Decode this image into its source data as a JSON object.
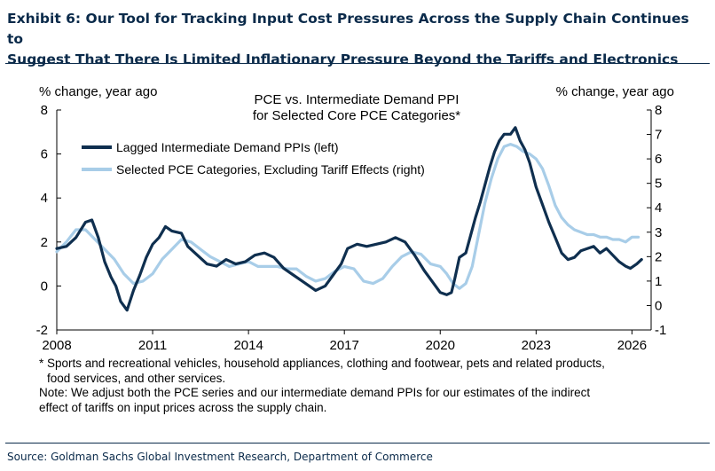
{
  "exhibit": {
    "title_line1": "Exhibit 6: Our Tool for Tracking Input Cost Pressures Across the Supply Chain Continues to",
    "title_line2": "Suggest That There Is Limited Inflationary Pressure Beyond the Tariffs and Electronics"
  },
  "colors": {
    "title": "#0a2a4a",
    "ppi_series": "#0f2f4f",
    "pce_series": "#a8cde8"
  },
  "chart_data": {
    "type": "line",
    "title": "PCE vs. Intermediate Demand PPI",
    "subtitle": "for Selected Core PCE Categories*",
    "ylabel_left": "% change, year ago",
    "ylabel_right": "% change, year ago",
    "xlim": [
      2008.0,
      2026.6
    ],
    "xticks": [
      "2008",
      "2011",
      "2014",
      "2017",
      "2020",
      "2023",
      "2026"
    ],
    "ylim_left": [
      -2,
      8
    ],
    "yticks_left": [
      "-2",
      "0",
      "2",
      "4",
      "6",
      "8"
    ],
    "ylim_right": [
      -1,
      8
    ],
    "yticks_right": [
      "-1",
      "0",
      "1",
      "2",
      "3",
      "4",
      "5",
      "6",
      "7",
      "8"
    ],
    "legend_position": "top-left",
    "series": [
      {
        "name": "Lagged Intermediate Demand PPIs (left)",
        "axis": "left",
        "x": [
          2008.0,
          2008.3,
          2008.6,
          2008.9,
          2009.1,
          2009.3,
          2009.5,
          2009.7,
          2009.85,
          2010.0,
          2010.2,
          2010.4,
          2010.6,
          2010.8,
          2011.0,
          2011.2,
          2011.4,
          2011.6,
          2011.9,
          2012.1,
          2012.4,
          2012.7,
          2013.0,
          2013.3,
          2013.6,
          2013.9,
          2014.2,
          2014.5,
          2014.8,
          2015.1,
          2015.4,
          2015.7,
          2015.9,
          2016.1,
          2016.4,
          2016.7,
          2016.9,
          2017.1,
          2017.4,
          2017.7,
          2018.0,
          2018.3,
          2018.6,
          2018.9,
          2019.2,
          2019.5,
          2019.8,
          2020.0,
          2020.2,
          2020.35,
          2020.45,
          2020.6,
          2020.8,
          2020.95,
          2021.1,
          2021.25,
          2021.4,
          2021.55,
          2021.7,
          2021.85,
          2022.0,
          2022.2,
          2022.35,
          2022.5,
          2022.65,
          2022.8,
          2023.0,
          2023.2,
          2023.4,
          2023.6,
          2023.8,
          2024.0,
          2024.2,
          2024.4,
          2024.6,
          2024.8,
          2025.0,
          2025.2,
          2025.4,
          2025.6,
          2025.8,
          2025.95,
          2026.05,
          2026.15,
          2026.3
        ],
        "values": [
          1.7,
          1.8,
          2.2,
          2.9,
          3.0,
          2.2,
          1.1,
          0.4,
          0.0,
          -0.7,
          -1.1,
          -0.2,
          0.5,
          1.3,
          1.9,
          2.2,
          2.7,
          2.5,
          2.4,
          1.8,
          1.4,
          1.0,
          0.9,
          1.2,
          1.0,
          1.1,
          1.4,
          1.5,
          1.3,
          0.8,
          0.5,
          0.2,
          0.0,
          -0.2,
          0.0,
          0.6,
          1.0,
          1.7,
          1.9,
          1.8,
          1.9,
          2.0,
          2.2,
          2.0,
          1.4,
          0.7,
          0.1,
          -0.3,
          -0.4,
          -0.3,
          0.3,
          1.3,
          1.5,
          2.3,
          3.1,
          3.8,
          4.6,
          5.4,
          6.1,
          6.6,
          6.9,
          6.9,
          7.2,
          6.6,
          6.2,
          5.6,
          4.5,
          3.7,
          2.9,
          2.2,
          1.5,
          1.2,
          1.3,
          1.6,
          1.7,
          1.8,
          1.5,
          1.7,
          1.4,
          1.1,
          0.9,
          0.8,
          0.9,
          1.0,
          1.2
        ]
      },
      {
        "name": "Selected PCE Categories, Excluding Tariff Effects (right)",
        "axis": "right",
        "x": [
          2008.0,
          2008.3,
          2008.6,
          2008.9,
          2009.2,
          2009.5,
          2009.8,
          2010.1,
          2010.4,
          2010.7,
          2011.0,
          2011.3,
          2011.6,
          2011.9,
          2012.2,
          2012.5,
          2012.8,
          2013.1,
          2013.4,
          2013.7,
          2014.0,
          2014.3,
          2014.6,
          2014.9,
          2015.2,
          2015.5,
          2015.8,
          2016.1,
          2016.4,
          2016.7,
          2017.0,
          2017.3,
          2017.6,
          2017.9,
          2018.2,
          2018.5,
          2018.8,
          2019.1,
          2019.4,
          2019.7,
          2020.0,
          2020.2,
          2020.4,
          2020.6,
          2020.8,
          2021.0,
          2021.2,
          2021.4,
          2021.6,
          2021.8,
          2022.0,
          2022.2,
          2022.4,
          2022.6,
          2022.8,
          2023.0,
          2023.2,
          2023.4,
          2023.6,
          2023.8,
          2024.0,
          2024.2,
          2024.4,
          2024.6,
          2024.8,
          2025.0,
          2025.2,
          2025.4,
          2025.6,
          2025.8,
          2026.0,
          2026.2
        ],
        "values": [
          2.2,
          2.6,
          3.1,
          3.1,
          2.7,
          2.3,
          1.9,
          1.3,
          0.9,
          1.0,
          1.3,
          1.9,
          2.3,
          2.7,
          2.6,
          2.3,
          2.0,
          1.8,
          1.6,
          1.7,
          1.8,
          1.6,
          1.6,
          1.6,
          1.5,
          1.5,
          1.2,
          1.0,
          1.1,
          1.4,
          1.6,
          1.5,
          1.0,
          0.9,
          1.1,
          1.6,
          2.0,
          2.2,
          2.1,
          1.7,
          1.6,
          1.3,
          0.9,
          0.7,
          0.9,
          1.6,
          2.9,
          4.2,
          5.2,
          6.0,
          6.5,
          6.6,
          6.5,
          6.3,
          6.2,
          6.0,
          5.6,
          4.9,
          4.1,
          3.6,
          3.3,
          3.1,
          3.0,
          2.9,
          2.9,
          2.8,
          2.8,
          2.7,
          2.7,
          2.6,
          2.8,
          2.8
        ]
      }
    ]
  },
  "notes": {
    "footnote_line1": "* Sports and recreational vehicles, household appliances, clothing and footwear, pets and related products,",
    "footnote_line2": "food services, and other services.",
    "note_line1": "Note: We adjust both the PCE series and our intermediate demand PPIs for our estimates of the indirect",
    "note_line2": "effect of tariffs on input prices across the supply chain."
  },
  "source": "Source: Goldman Sachs Global Investment Research, Department of Commerce"
}
